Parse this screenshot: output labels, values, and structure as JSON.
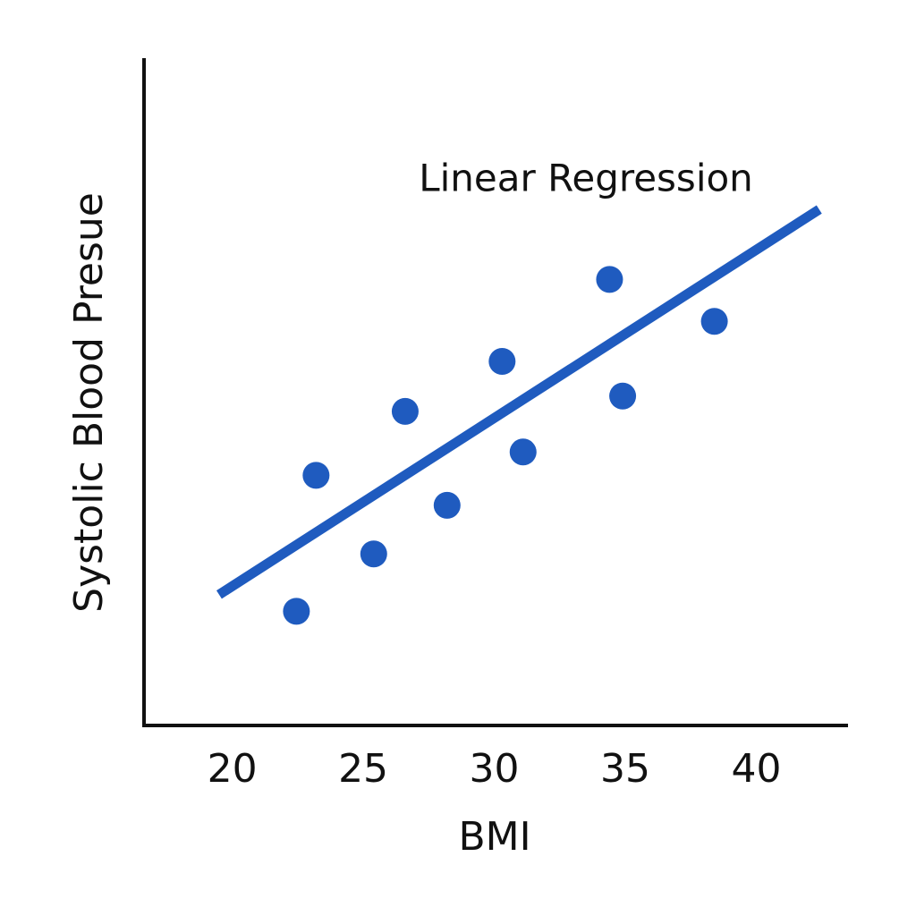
{
  "chart_data": {
    "type": "scatter",
    "x_label": "BMI",
    "y_label": "Systolic Blood Presue",
    "annotation": "Linear Regression",
    "x": [
      22.45,
      23.2,
      25.4,
      26.6,
      28.2,
      30.3,
      31.1,
      34.4,
      34.9,
      38.4
    ],
    "values": [
      17.0,
      37.4,
      25.6,
      47.0,
      32.9,
      54.5,
      40.9,
      66.8,
      49.3,
      60.5
    ],
    "color": "#1f5bbf",
    "regression": {
      "x": [
        19.5,
        42.4
      ],
      "values": [
        19.5,
        77.3
      ],
      "color": "#1f5bbf"
    },
    "xlim": [
      16.6,
      43.5
    ],
    "xticks": [
      20,
      25,
      30,
      35,
      40
    ],
    "ylim": [
      0,
      100
    ]
  }
}
